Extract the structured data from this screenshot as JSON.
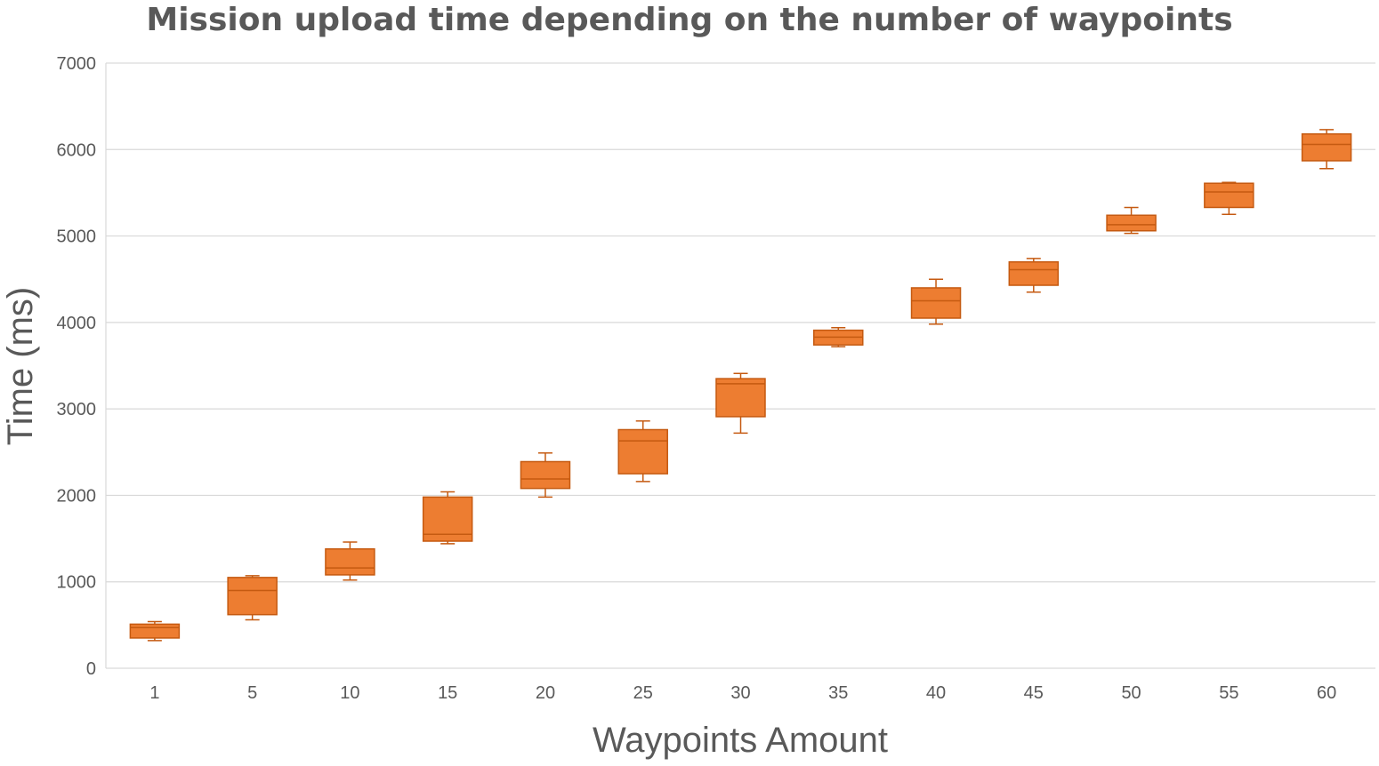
{
  "chart_data": {
    "type": "box",
    "title": "Mission upload time depending on the number of waypoints",
    "xlabel": "Waypoints Amount",
    "ylabel": "Time (ms)",
    "ylim": [
      0,
      7000
    ],
    "yticks": [
      0,
      1000,
      2000,
      3000,
      4000,
      5000,
      6000,
      7000
    ],
    "grid": true,
    "legend": "none",
    "colors": {
      "box_fill": "#ED7D31",
      "box_stroke": "#C55A11",
      "grid": "#D9D9D9",
      "text": "#595959"
    },
    "categories": [
      "1",
      "5",
      "10",
      "15",
      "20",
      "25",
      "30",
      "35",
      "40",
      "45",
      "50",
      "55",
      "60"
    ],
    "boxes": [
      {
        "min": 320,
        "q1": 350,
        "median": 470,
        "q3": 510,
        "max": 540
      },
      {
        "min": 560,
        "q1": 620,
        "median": 900,
        "q3": 1050,
        "max": 1070
      },
      {
        "min": 1020,
        "q1": 1080,
        "median": 1160,
        "q3": 1380,
        "max": 1460
      },
      {
        "min": 1440,
        "q1": 1470,
        "median": 1550,
        "q3": 1980,
        "max": 2040
      },
      {
        "min": 1980,
        "q1": 2080,
        "median": 2190,
        "q3": 2390,
        "max": 2490
      },
      {
        "min": 2160,
        "q1": 2250,
        "median": 2630,
        "q3": 2760,
        "max": 2860
      },
      {
        "min": 2720,
        "q1": 2910,
        "median": 3290,
        "q3": 3350,
        "max": 3410
      },
      {
        "min": 3720,
        "q1": 3740,
        "median": 3830,
        "q3": 3910,
        "max": 3940
      },
      {
        "min": 3980,
        "q1": 4050,
        "median": 4250,
        "q3": 4400,
        "max": 4500
      },
      {
        "min": 4350,
        "q1": 4430,
        "median": 4610,
        "q3": 4700,
        "max": 4740
      },
      {
        "min": 5030,
        "q1": 5060,
        "median": 5130,
        "q3": 5240,
        "max": 5330
      },
      {
        "min": 5250,
        "q1": 5330,
        "median": 5510,
        "q3": 5610,
        "max": 5620
      },
      {
        "min": 5780,
        "q1": 5870,
        "median": 6060,
        "q3": 6180,
        "max": 6230
      }
    ]
  }
}
